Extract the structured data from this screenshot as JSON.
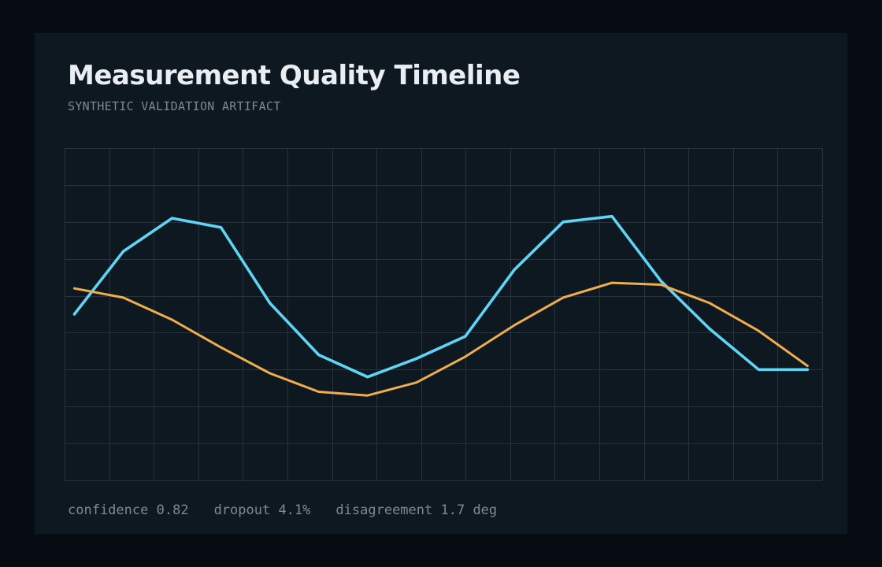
{
  "title": "Measurement Quality Timeline",
  "subtitle": "SYNTHETIC VALIDATION ARTIFACT",
  "metrics": [
    {
      "label": "confidence",
      "value": "0.82"
    },
    {
      "label": "dropout",
      "value": "4.1%"
    },
    {
      "label": "disagreement",
      "value": "1.7 deg"
    }
  ],
  "colors": {
    "background": "#070c13",
    "panel": "#0e1821",
    "grid": "#27323c",
    "title": "#e9eef3",
    "muted": "#7d8994",
    "series_blue": "#5fd4f5",
    "series_orange": "#f0ad4e"
  },
  "chart_data": {
    "type": "line",
    "title": "",
    "xlabel": "",
    "ylabel": "",
    "grid": true,
    "legend": "none",
    "xlim": [
      -0.2,
      15.3
    ],
    "ylim": [
      0,
      9
    ],
    "x": [
      0,
      1,
      2,
      3,
      4,
      5,
      6,
      7,
      8,
      9,
      10,
      11,
      12,
      13,
      14,
      15
    ],
    "series": [
      {
        "color": "#5fd4f5",
        "values": [
          4.5,
          6.2,
          7.1,
          6.85,
          4.8,
          3.4,
          2.8,
          3.3,
          3.9,
          5.7,
          7.0,
          7.15,
          5.4,
          4.1,
          3.0,
          3.0
        ]
      },
      {
        "color": "#f0ad4e",
        "values": [
          5.2,
          4.95,
          4.35,
          3.6,
          2.9,
          2.4,
          2.3,
          2.65,
          3.35,
          4.2,
          4.95,
          5.35,
          5.3,
          4.8,
          4.05,
          3.1
        ]
      }
    ]
  }
}
